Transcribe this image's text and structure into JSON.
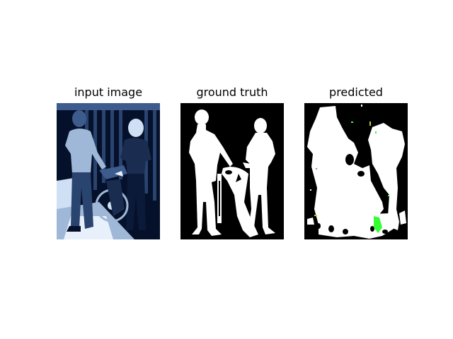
{
  "figure": {
    "panels": [
      {
        "title": "input image",
        "content": "photo of two people with a motorcycle in front of a wooden shed"
      },
      {
        "title": "ground truth",
        "content": "binary segmentation mask"
      },
      {
        "title": "predicted",
        "content": "predicted segmentation mask"
      }
    ]
  },
  "colors": {
    "mask_bg": "#000000",
    "mask_fg": "#ffffff",
    "photo_dark": "#05102a",
    "photo_mid": "#3d5b8c",
    "photo_light": "#cfe0f5",
    "noise_green": "#33ff33"
  }
}
